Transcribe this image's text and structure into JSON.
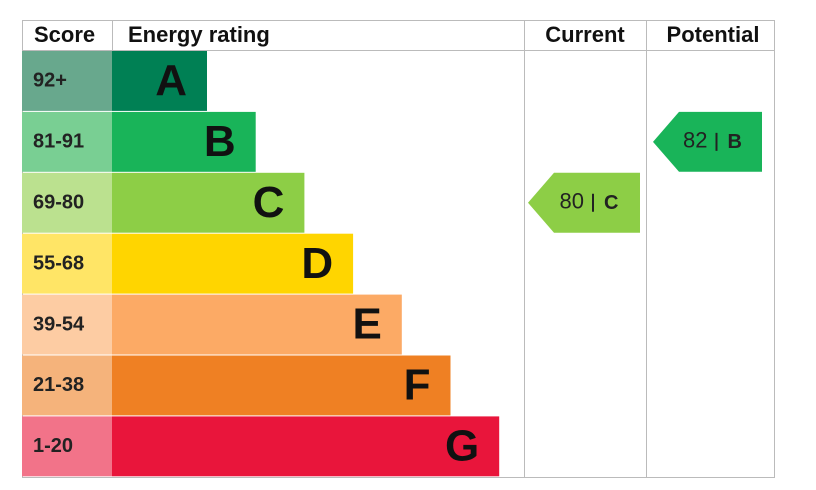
{
  "header": {
    "score": "Score",
    "rating": "Energy rating",
    "current": "Current",
    "potential": "Potential"
  },
  "bands": [
    {
      "score": "92+",
      "letter": "A",
      "color": "#008054",
      "tint": "#68a88d"
    },
    {
      "score": "81-91",
      "letter": "B",
      "color": "#19b459",
      "tint": "#79cf93"
    },
    {
      "score": "69-80",
      "letter": "C",
      "color": "#8dce46",
      "tint": "#bbe18f"
    },
    {
      "score": "55-68",
      "letter": "D",
      "color": "#ffd500",
      "tint": "#ffe566"
    },
    {
      "score": "39-54",
      "letter": "E",
      "color": "#fcaa65",
      "tint": "#fdcca3"
    },
    {
      "score": "21-38",
      "letter": "F",
      "color": "#ef8023",
      "tint": "#f5b37b"
    },
    {
      "score": "1-20",
      "letter": "G",
      "color": "#e9153b",
      "tint": "#f27389"
    }
  ],
  "current": {
    "value": 80,
    "letter": "C"
  },
  "potential": {
    "value": 82,
    "letter": "B"
  }
}
